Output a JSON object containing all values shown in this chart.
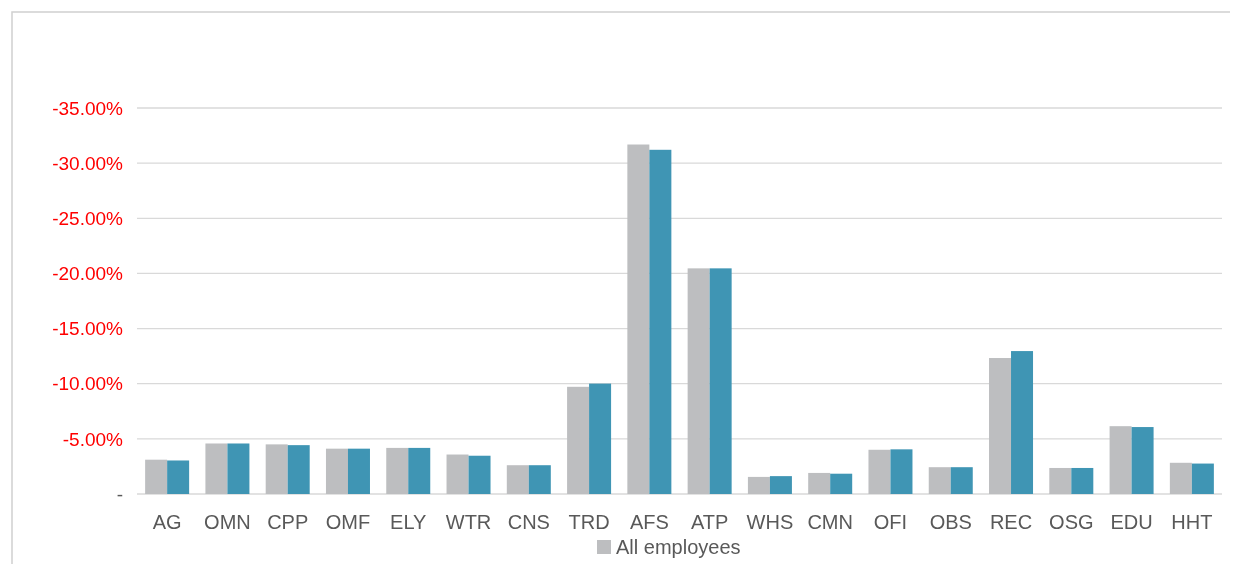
{
  "chart_data": {
    "type": "bar",
    "categories": [
      "AG",
      "OMN",
      "CPP",
      "OMF",
      "ELY",
      "WTR",
      "CNS",
      "TRD",
      "AFS",
      "ATP",
      "WHS",
      "CMN",
      "OFI",
      "OBS",
      "REC",
      "OSG",
      "EDU",
      "HHT"
    ],
    "series": [
      {
        "name": "All employees",
        "color": "#bdbec0",
        "values": [
          -3.11,
          -4.58,
          -4.5,
          -4.11,
          -4.18,
          -3.58,
          -2.61,
          -9.72,
          -31.69,
          -20.46,
          -1.55,
          -1.91,
          -4.01,
          -2.43,
          -12.33,
          -2.36,
          -6.15,
          -2.83
        ]
      },
      {
        "color": "#3f95b4",
        "values": [
          -3.04,
          -4.58,
          -4.43,
          -4.11,
          -4.18,
          -3.47,
          -2.61,
          -10.01,
          -31.21,
          -20.46,
          -1.62,
          -1.84,
          -4.05,
          -2.43,
          -12.96,
          -2.36,
          -6.07,
          -2.76
        ]
      }
    ],
    "ylim": [
      0,
      -35
    ],
    "yticks": [
      {
        "value": 0,
        "label": "-"
      },
      {
        "value": -5,
        "label": "-5.00%"
      },
      {
        "value": -10,
        "label": "-10.00%"
      },
      {
        "value": -15,
        "label": "-15.00%"
      },
      {
        "value": -20,
        "label": "-20.00%"
      },
      {
        "value": -25,
        "label": "-25.00%"
      },
      {
        "value": -30,
        "label": "-30.00%"
      },
      {
        "value": -35,
        "label": "-35.00%"
      }
    ],
    "grid": "y",
    "legend": "bottom"
  }
}
